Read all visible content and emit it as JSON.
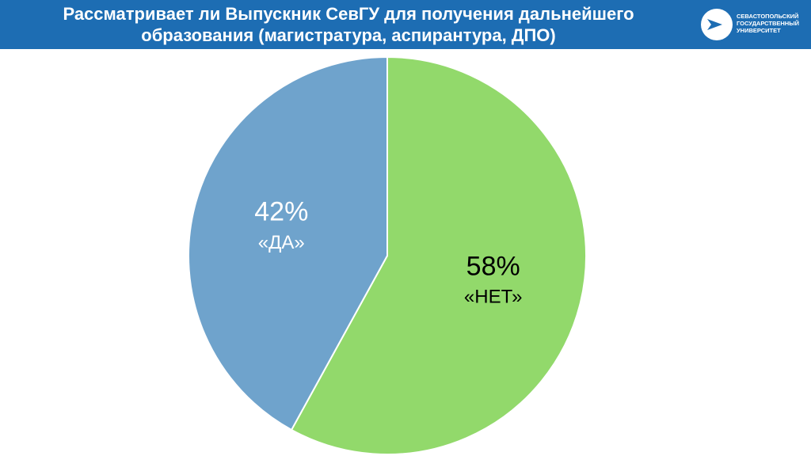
{
  "chart_data": {
    "type": "pie",
    "title": "Рассматривает ли Выпускник СевГУ для получения дальнейшего образования (магистратура, аспирантура, ДПО)",
    "categories": [
      "«НЕТ»",
      "«ДА»"
    ],
    "values": [
      58,
      42
    ],
    "value_labels": [
      "58%",
      "42%"
    ],
    "colors": [
      "#92d96b",
      "#6fa3cc"
    ],
    "label_colors": [
      "#000000",
      "#ffffff"
    ]
  },
  "logo": {
    "lines": [
      "СЕВАСТОПОЛЬСКИЙ",
      "ГОСУДАРСТВЕННЫЙ",
      "УНИВЕРСИТЕТ"
    ]
  }
}
